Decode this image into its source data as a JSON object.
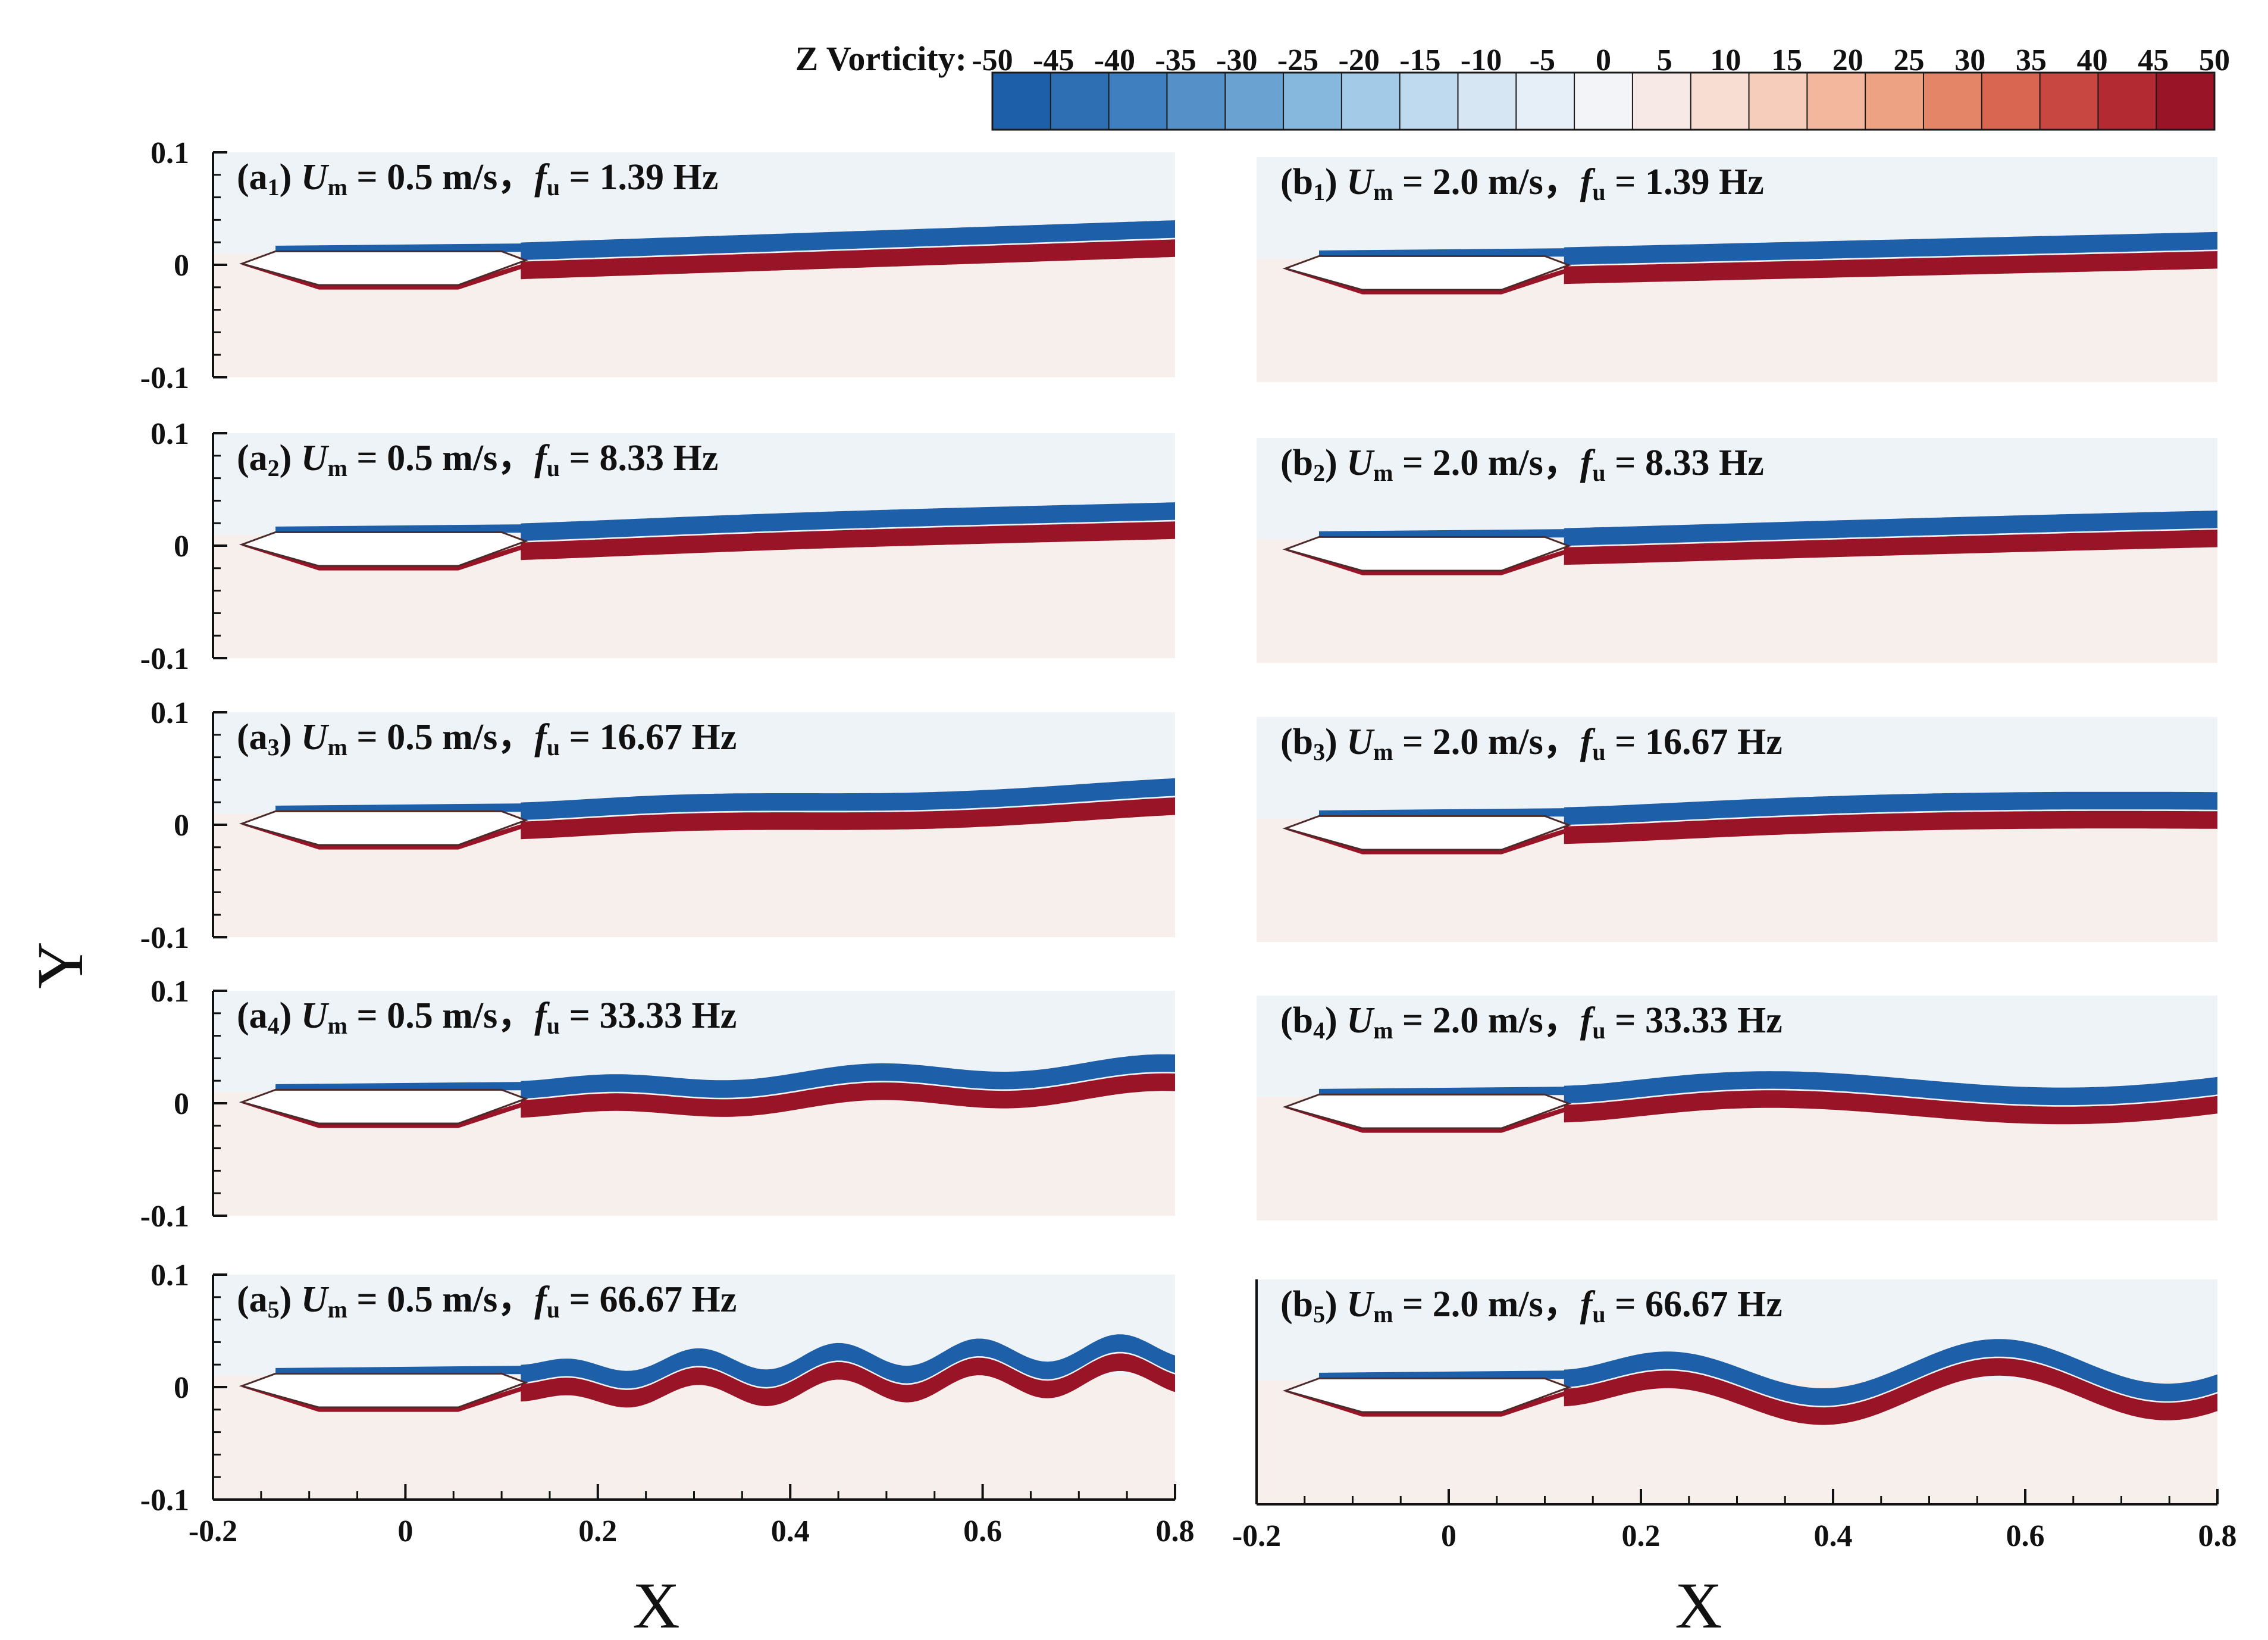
{
  "chart_data": {
    "type": "heatmap",
    "colorbar": {
      "title": "Z Vorticity:",
      "ticks": [
        "-50",
        "-45",
        "-40",
        "-35",
        "-30",
        "-25",
        "-20",
        "-15",
        "-10",
        "-5",
        "0",
        "5",
        "10",
        "15",
        "20",
        "25",
        "30",
        "35",
        "40",
        "45",
        "50"
      ],
      "levels": [
        -50,
        -45,
        -40,
        -35,
        -30,
        -25,
        -20,
        -15,
        -10,
        -5,
        0,
        5,
        10,
        15,
        20,
        25,
        30,
        35,
        40,
        45,
        50
      ],
      "colors": [
        "#1d5fa8",
        "#2e6fb4",
        "#3f7fc0",
        "#5590c8",
        "#6aa3d2",
        "#86b8dd",
        "#a3cae6",
        "#bfdaee",
        "#d6e6f3",
        "#e6eff7",
        "#f3f4f7",
        "#f7eae6",
        "#f8ddd2",
        "#f6ccba",
        "#f3b79e",
        "#eda284",
        "#e48568",
        "#d86650",
        "#c84740",
        "#b42a32",
        "#9a1428"
      ]
    },
    "y_axis": {
      "label": "Y",
      "range": [
        -0.1,
        0.1
      ],
      "ticks": [
        "0.1",
        "0",
        "-0.1"
      ]
    },
    "x_axis": {
      "label": "X",
      "range": [
        -0.2,
        0.8
      ],
      "ticks": [
        "-0.2",
        "0",
        "0.2",
        "0.4",
        "0.6",
        "0.8"
      ]
    },
    "panels": [
      {
        "id": "a1",
        "prefix": "(a",
        "sub": "1",
        "um": "0.5 m/s",
        "fu": "1.39 Hz",
        "velocity": 0.5,
        "frequency": 1.39
      },
      {
        "id": "a2",
        "prefix": "(a",
        "sub": "2",
        "um": "0.5 m/s",
        "fu": "8.33 Hz",
        "velocity": 0.5,
        "frequency": 8.33
      },
      {
        "id": "a3",
        "prefix": "(a",
        "sub": "3",
        "um": "0.5 m/s",
        "fu": "16.67 Hz",
        "velocity": 0.5,
        "frequency": 16.67
      },
      {
        "id": "a4",
        "prefix": "(a",
        "sub": "4",
        "um": "0.5 m/s",
        "fu": "33.33 Hz",
        "velocity": 0.5,
        "frequency": 33.33
      },
      {
        "id": "a5",
        "prefix": "(a",
        "sub": "5",
        "um": "0.5 m/s",
        "fu": "66.67 Hz",
        "velocity": 0.5,
        "frequency": 66.67
      },
      {
        "id": "b1",
        "prefix": "(b",
        "sub": "1",
        "um": "2.0 m/s",
        "fu": "1.39 Hz",
        "velocity": 2.0,
        "frequency": 1.39
      },
      {
        "id": "b2",
        "prefix": "(b",
        "sub": "2",
        "um": "2.0 m/s",
        "fu": "8.33 Hz",
        "velocity": 2.0,
        "frequency": 8.33
      },
      {
        "id": "b3",
        "prefix": "(b",
        "sub": "3",
        "um": "2.0 m/s",
        "fu": "16.67 Hz",
        "velocity": 2.0,
        "frequency": 16.67
      },
      {
        "id": "b4",
        "prefix": "(b",
        "sub": "4",
        "um": "2.0 m/s",
        "fu": "33.33 Hz",
        "velocity": 2.0,
        "frequency": 33.33
      },
      {
        "id": "b5",
        "prefix": "(b",
        "sub": "5",
        "um": "2.0 m/s",
        "fu": "66.67 Hz",
        "velocity": 2.0,
        "frequency": 66.67
      }
    ]
  }
}
